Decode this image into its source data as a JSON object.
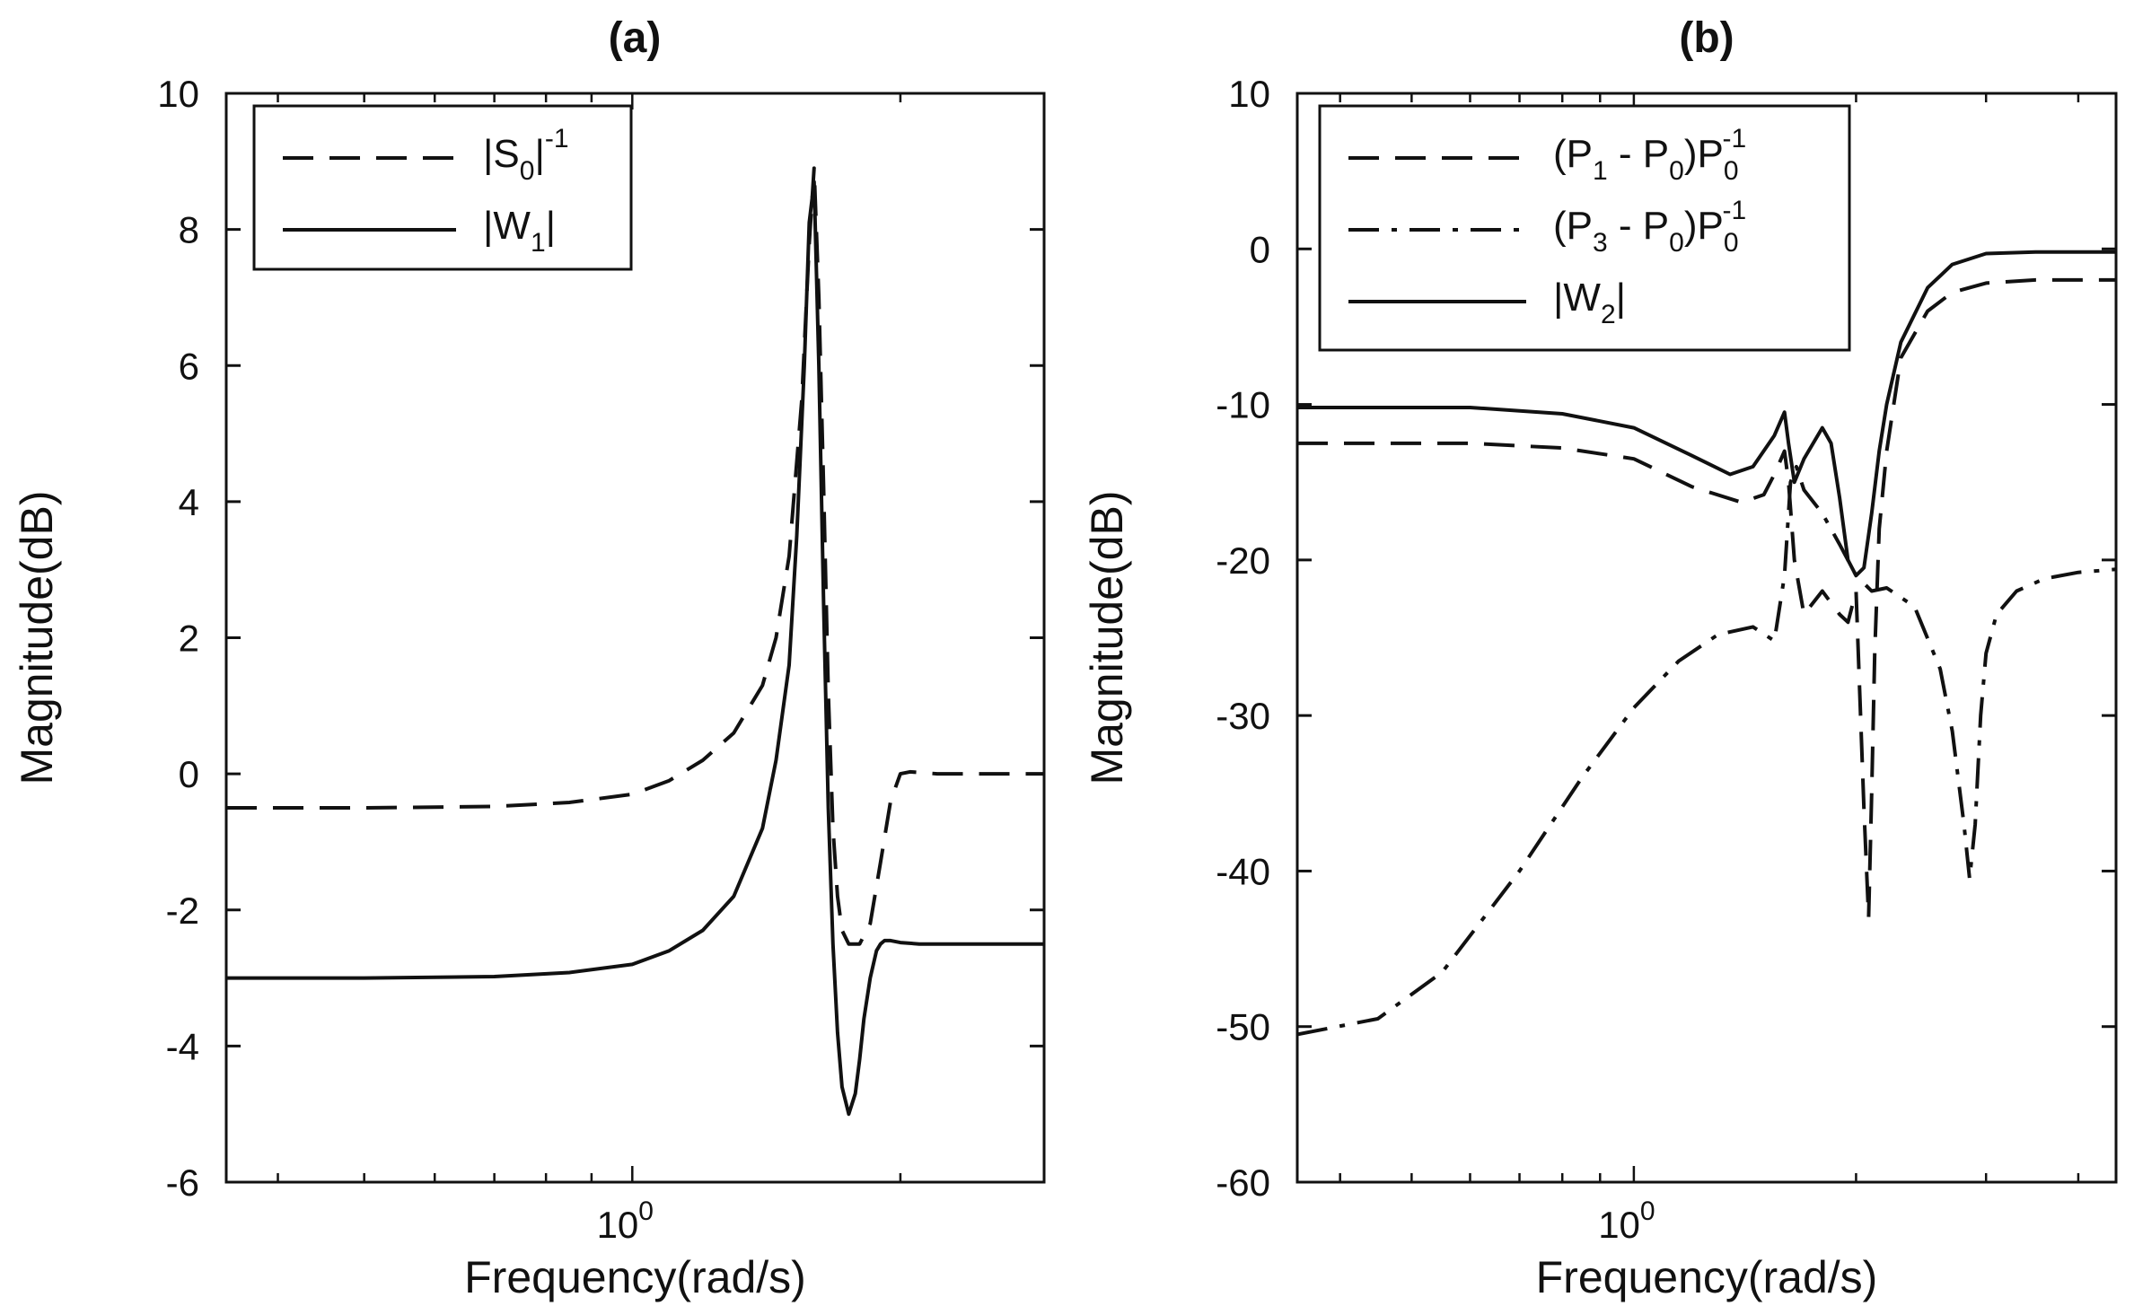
{
  "chart_data": [
    {
      "type": "line",
      "title": "(a)",
      "xlabel": "Frequency(rad/s)",
      "ylabel": "Magnitude(dB)",
      "xscale": "log",
      "xlim": [
        0.35,
        2.9
      ],
      "ylim": [
        -6,
        10
      ],
      "yticks": [
        -6,
        -4,
        -2,
        0,
        2,
        4,
        6,
        8,
        10
      ],
      "ytick_labels": [
        "-6",
        "-4",
        "-2",
        "0",
        "2",
        "4",
        "6",
        "8",
        "10"
      ],
      "xticks": [
        1.0
      ],
      "xtick_base": "10",
      "xtick_exp": "0",
      "legend_position": "top-left",
      "series": [
        {
          "name": "|S0|^-1",
          "legend_main": "|S",
          "legend_sub": "0",
          "legend_tail": "|",
          "legend_sup": "-1",
          "style": "dashed",
          "x": [
            0.35,
            0.5,
            0.7,
            0.85,
            1.0,
            1.1,
            1.2,
            1.3,
            1.4,
            1.45,
            1.5,
            1.55,
            1.58,
            1.6,
            1.62,
            1.64,
            1.66,
            1.68,
            1.7,
            1.72,
            1.75,
            1.8,
            1.85,
            1.9,
            1.95,
            2.0,
            2.05,
            2.1,
            2.2,
            2.4,
            2.9
          ],
          "values": [
            -0.5,
            -0.5,
            -0.48,
            -0.42,
            -0.3,
            -0.1,
            0.2,
            0.6,
            1.3,
            2.0,
            3.2,
            5.5,
            7.8,
            8.9,
            7.0,
            4.2,
            1.2,
            -0.8,
            -1.8,
            -2.3,
            -2.5,
            -2.5,
            -2.2,
            -1.3,
            -0.4,
            0.0,
            0.03,
            0.02,
            0.0,
            0.0,
            0.0
          ]
        },
        {
          "name": "|W1|",
          "legend_main": "|W",
          "legend_sub": "1",
          "legend_tail": "|",
          "legend_sup": "",
          "style": "solid",
          "x": [
            0.35,
            0.5,
            0.7,
            0.85,
            1.0,
            1.1,
            1.2,
            1.3,
            1.4,
            1.45,
            1.5,
            1.53,
            1.56,
            1.58,
            1.6,
            1.62,
            1.64,
            1.66,
            1.68,
            1.7,
            1.72,
            1.75,
            1.78,
            1.8,
            1.82,
            1.85,
            1.88,
            1.9,
            1.92,
            1.95,
            2.0,
            2.1,
            2.3,
            2.9
          ],
          "values": [
            -3.0,
            -3.0,
            -2.98,
            -2.92,
            -2.8,
            -2.6,
            -2.3,
            -1.8,
            -0.8,
            0.2,
            1.6,
            3.5,
            6.0,
            8.1,
            8.7,
            6.0,
            2.5,
            -0.5,
            -2.5,
            -3.8,
            -4.6,
            -5.0,
            -4.7,
            -4.2,
            -3.6,
            -3.0,
            -2.6,
            -2.5,
            -2.45,
            -2.45,
            -2.48,
            -2.5,
            -2.5,
            -2.5
          ]
        }
      ]
    },
    {
      "type": "line",
      "title": "(b)",
      "xlabel": "Frequency(rad/s)",
      "ylabel": "Magnitude(dB)",
      "xscale": "log",
      "xlim": [
        0.35,
        4.5
      ],
      "ylim": [
        -60,
        10
      ],
      "yticks": [
        -60,
        -50,
        -40,
        -30,
        -20,
        -10,
        0,
        10
      ],
      "ytick_labels": [
        "-60",
        "-50",
        "-40",
        "-30",
        "-20",
        "-10",
        "0",
        "10"
      ],
      "xticks": [
        1.0
      ],
      "xtick_base": "10",
      "xtick_exp": "0",
      "legend_position": "top-left",
      "series": [
        {
          "name": "(P1 - P0)P0^-1",
          "legend_parts": [
            "(P",
            "1",
            " - P",
            "0",
            ")P",
            "0",
            "-1"
          ],
          "style": "dashed",
          "x": [
            0.35,
            0.6,
            0.8,
            1.0,
            1.2,
            1.4,
            1.5,
            1.55,
            1.6,
            1.62,
            1.65,
            1.7,
            1.8,
            1.9,
            1.95,
            2.0,
            2.05,
            2.08,
            2.1,
            2.12,
            2.15,
            2.2,
            2.3,
            2.5,
            2.7,
            3.0,
            3.5,
            4.5
          ],
          "values": [
            -12.5,
            -12.5,
            -12.8,
            -13.5,
            -15.3,
            -16.3,
            -15.8,
            -14.5,
            -13.0,
            -15.0,
            -20.0,
            -23.5,
            -22.0,
            -23.5,
            -24.0,
            -22.0,
            -36.0,
            -43.0,
            -35.0,
            -26.0,
            -18.0,
            -13.0,
            -7.0,
            -4.0,
            -2.8,
            -2.2,
            -2.0,
            -2.0
          ]
        },
        {
          "name": "(P3 - P0)P0^-1",
          "legend_parts": [
            "(P",
            "3",
            " - P",
            "0",
            ")P",
            "0",
            "-1"
          ],
          "style": "dashdot",
          "x": [
            0.35,
            0.45,
            0.55,
            0.7,
            0.85,
            1.0,
            1.15,
            1.3,
            1.45,
            1.55,
            1.6,
            1.63,
            1.66,
            1.7,
            1.8,
            1.9,
            2.0,
            2.1,
            2.2,
            2.4,
            2.6,
            2.7,
            2.8,
            2.85,
            2.9,
            2.95,
            3.0,
            3.1,
            3.3,
            3.6,
            4.0,
            4.5
          ],
          "values": [
            -50.5,
            -49.5,
            -46.5,
            -40.0,
            -34.0,
            -29.5,
            -26.5,
            -24.8,
            -24.3,
            -25.2,
            -21.0,
            -15.0,
            -14.0,
            -15.5,
            -17.0,
            -19.0,
            -21.0,
            -22.0,
            -21.8,
            -23.0,
            -27.0,
            -31.0,
            -37.0,
            -40.5,
            -37.0,
            -30.0,
            -26.0,
            -23.5,
            -22.0,
            -21.2,
            -20.8,
            -20.6
          ]
        },
        {
          "name": "|W2|",
          "legend_parts": [
            "|W",
            "2",
            "|",
            "",
            "",
            "",
            ""
          ],
          "style": "solid",
          "x": [
            0.35,
            0.6,
            0.8,
            1.0,
            1.2,
            1.35,
            1.45,
            1.55,
            1.6,
            1.62,
            1.65,
            1.7,
            1.8,
            1.85,
            1.9,
            1.95,
            2.0,
            2.05,
            2.1,
            2.15,
            2.2,
            2.3,
            2.5,
            2.7,
            3.0,
            3.5,
            4.5
          ],
          "values": [
            -10.2,
            -10.2,
            -10.6,
            -11.5,
            -13.3,
            -14.5,
            -14.0,
            -12.0,
            -10.5,
            -12.5,
            -15.0,
            -13.5,
            -11.5,
            -12.5,
            -16.0,
            -20.0,
            -21.0,
            -20.5,
            -17.0,
            -13.0,
            -10.0,
            -6.0,
            -2.5,
            -1.0,
            -0.3,
            -0.2,
            -0.2
          ]
        }
      ]
    }
  ]
}
